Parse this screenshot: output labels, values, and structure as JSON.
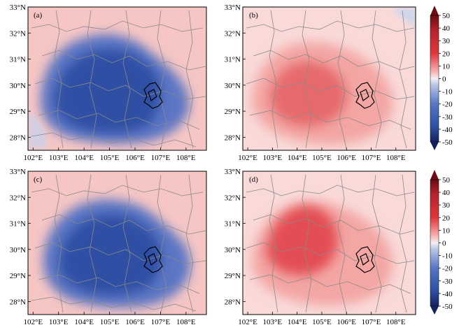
{
  "figure": {
    "panels": [
      {
        "label": "(a)",
        "kind": "blue-core"
      },
      {
        "label": "(b)",
        "kind": "red-core"
      },
      {
        "label": "(c)",
        "kind": "blue-core"
      },
      {
        "label": "(d)",
        "kind": "red-core"
      }
    ],
    "lat_ticks": [
      "33°N",
      "32°N",
      "31°N",
      "30°N",
      "29°N",
      "28°N"
    ],
    "lon_ticks": [
      "102°E",
      "103°E",
      "104°E",
      "105°E",
      "106°E",
      "107°E",
      "108°E"
    ],
    "colorbar_ticks": [
      "50",
      "40",
      "30",
      "20",
      "10",
      "0",
      "-10",
      "-20",
      "-30",
      "-40",
      "-50"
    ],
    "colors": {
      "red_max": "#6b0d12",
      "red": "#e0363c",
      "pink": "#f6b7b5",
      "neutral": "#f4f0f4",
      "light_blue": "#b9c6e6",
      "blue": "#2d4fa4",
      "blue_max": "#15215a",
      "boundary": "#8a8a8a",
      "city_outline": "#000000"
    }
  },
  "chart_data": {
    "type": "heatmap",
    "title": "",
    "panels": [
      "(a)",
      "(b)",
      "(c)",
      "(d)"
    ],
    "lat_range": [
      27.5,
      33.0
    ],
    "lon_range": [
      101.8,
      108.8
    ],
    "colorbar_range": [
      -50,
      50
    ],
    "colorbar_ticks": [
      50,
      40,
      30,
      20,
      10,
      0,
      -10,
      -20,
      -30,
      -40,
      -50
    ],
    "xlabel": "",
    "ylabel": ""
  }
}
